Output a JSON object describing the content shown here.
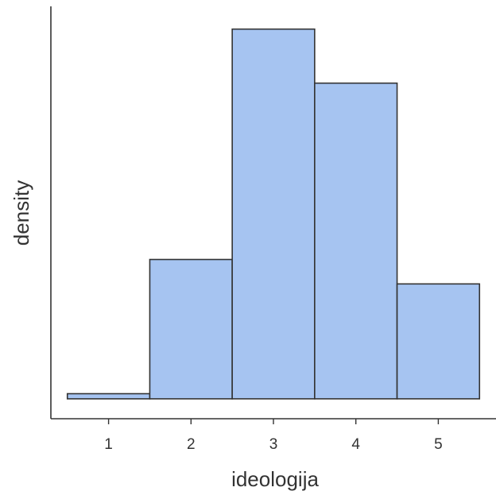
{
  "chart_data": {
    "type": "bar",
    "title": "",
    "xlabel": "ideologija",
    "ylabel": "density",
    "bin_width": 1,
    "x": [
      1,
      2,
      3,
      4,
      5
    ],
    "values": [
      0.009,
      0.245,
      0.65,
      0.555,
      0.202
    ],
    "xlim": [
      0.3,
      5.7
    ],
    "ylim": [
      -0.035,
      0.69
    ],
    "x_ticks": [
      "1",
      "2",
      "3",
      "4",
      "5"
    ],
    "y_ticks_shown": false,
    "grid": false,
    "legend": "none",
    "colors": {
      "bar_fill": "#a6c4f1",
      "bar_stroke": "#333333",
      "axis": "#333333",
      "text": "#333333"
    }
  }
}
